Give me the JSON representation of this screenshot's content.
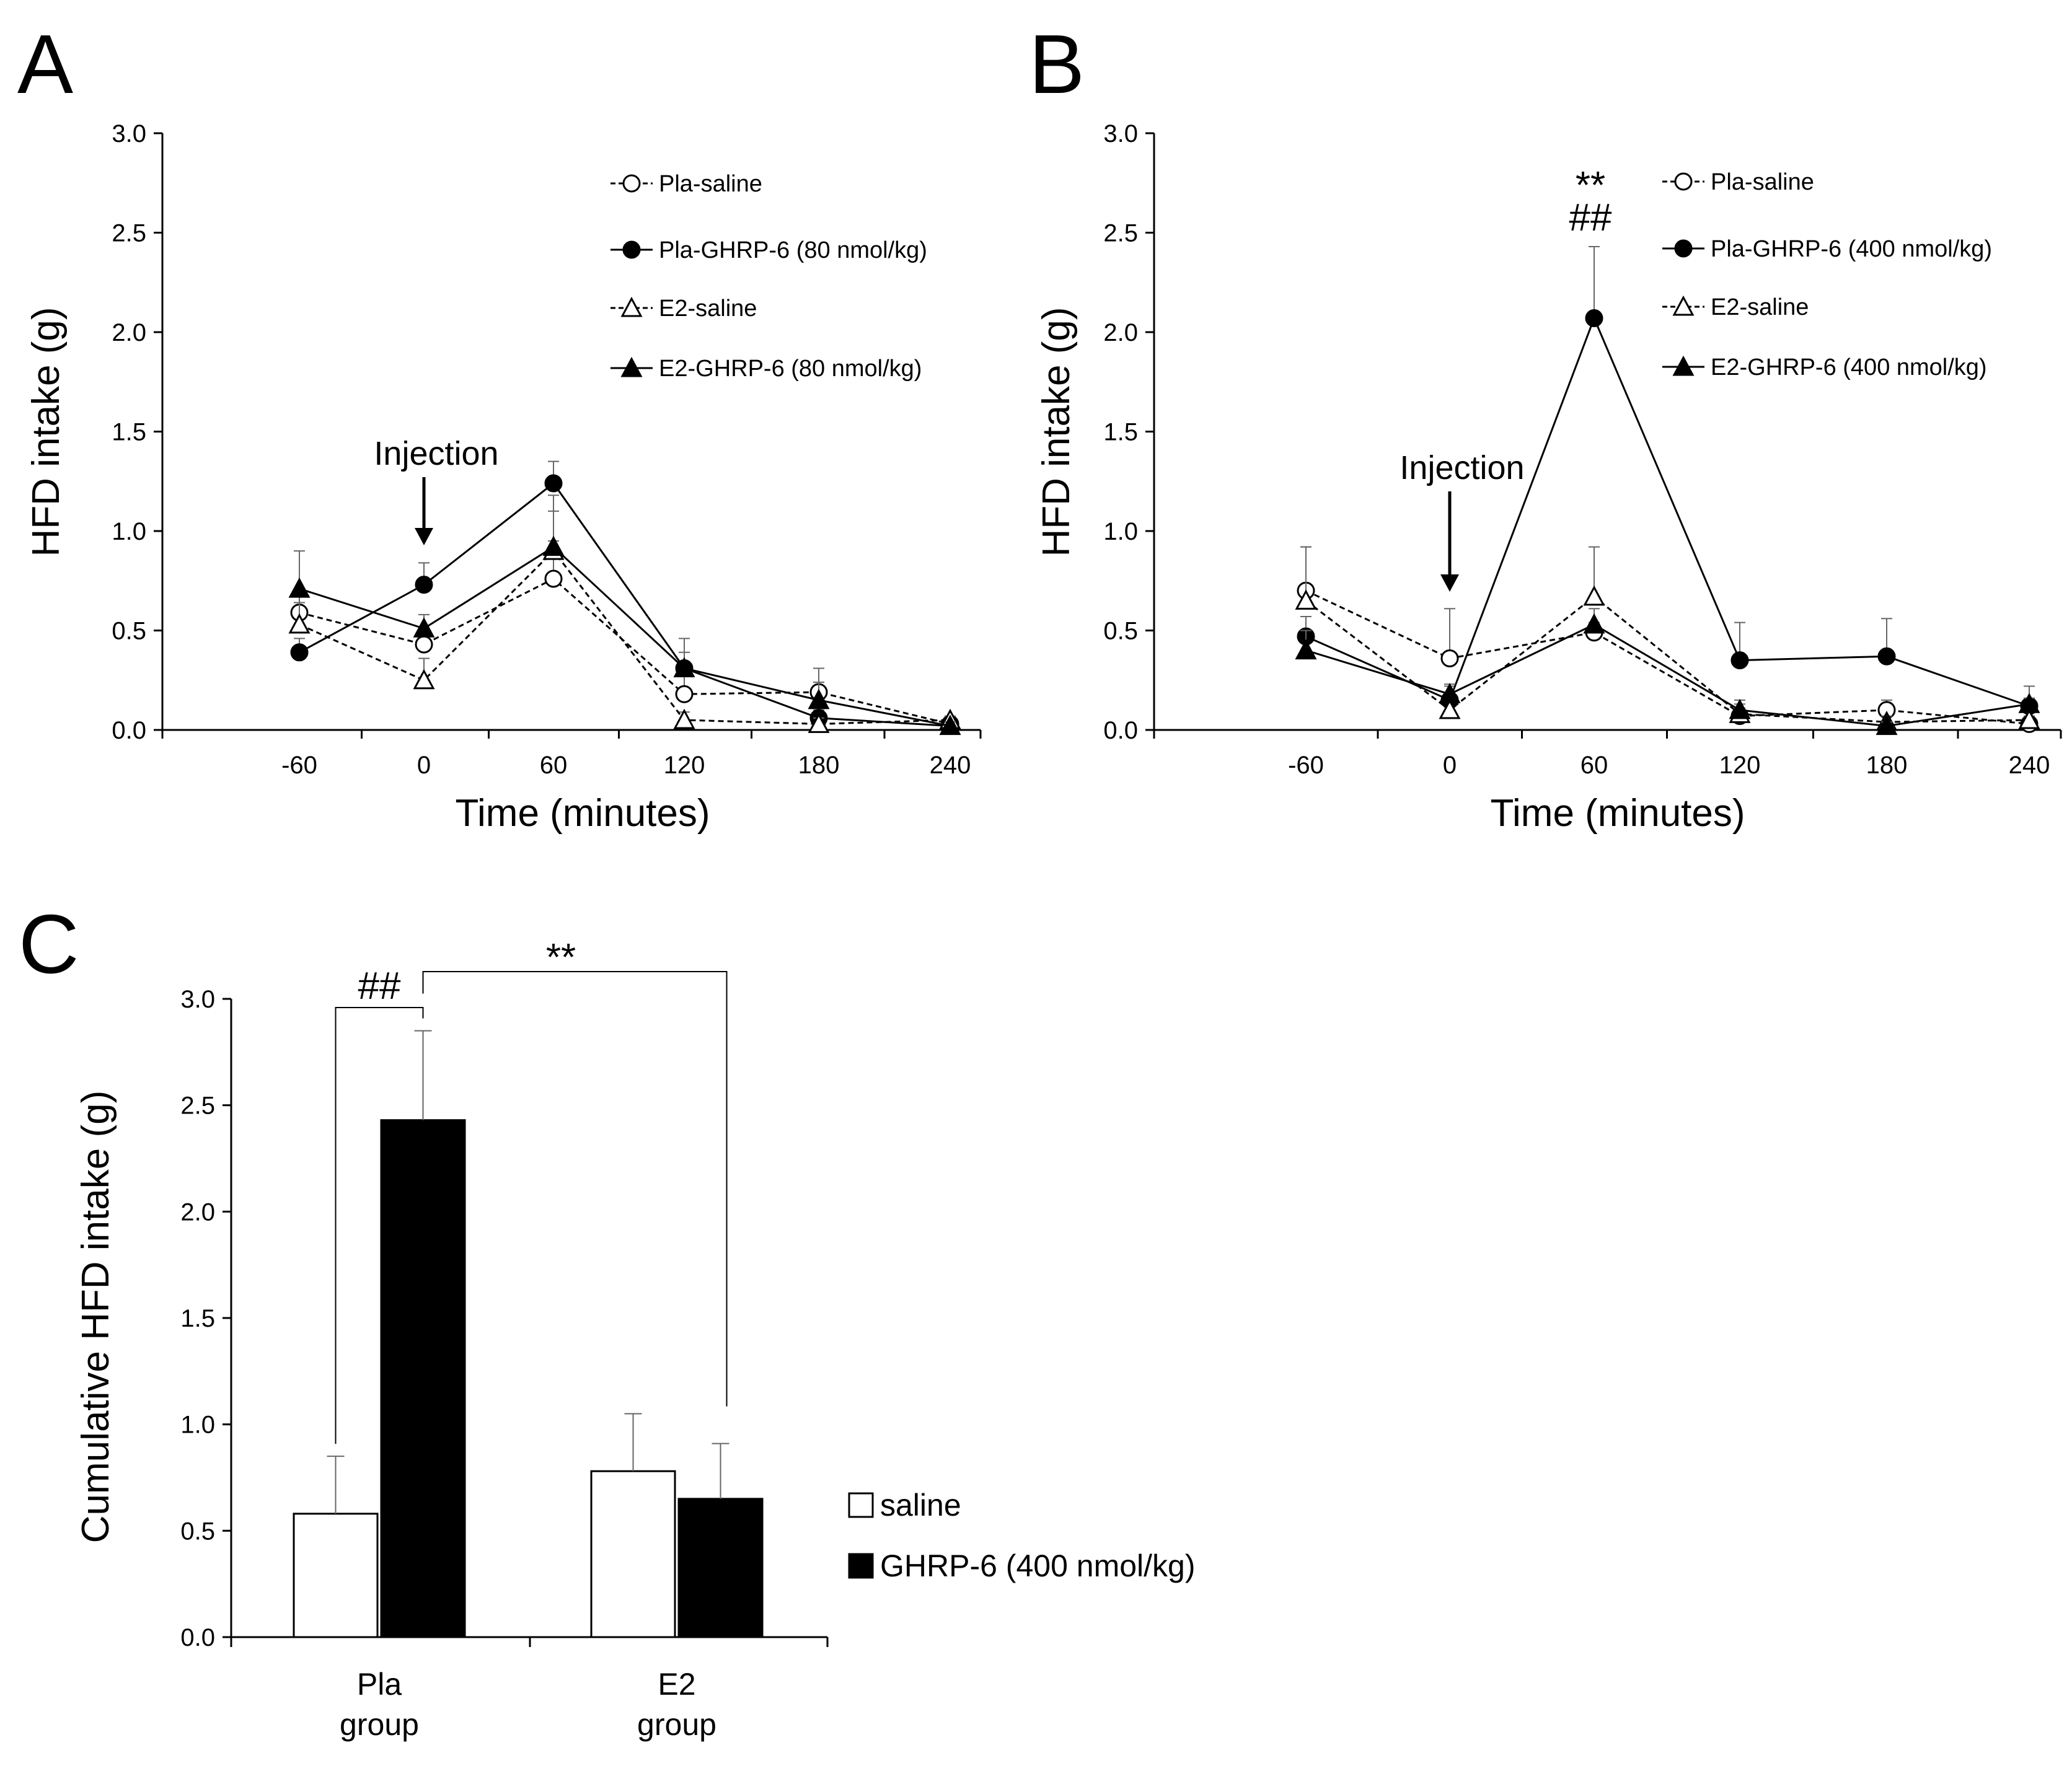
{
  "chart_data": [
    {
      "panel": "A",
      "type": "line",
      "xlabel": "Time (minutes)",
      "ylabel": "HFD intake (g)",
      "x": [
        -60,
        0,
        60,
        120,
        180,
        240
      ],
      "xticks": [
        "-60",
        "0",
        "60",
        "120",
        "180",
        "240"
      ],
      "yticks": [
        "3.0",
        "2.5",
        "2.0",
        "1.5",
        "1.0",
        "0.5",
        "0.0"
      ],
      "ylim": [
        0,
        3
      ],
      "annotation": "Injection",
      "annotation_x": 0,
      "series": [
        {
          "name": "Pla-saline",
          "marker": "open-circle",
          "line": "dashed",
          "values": [
            0.59,
            0.43,
            0.76,
            0.18,
            0.19,
            0.03
          ],
          "errors": [
            0.12,
            0.08,
            0.19,
            0.14,
            0.12,
            0.02
          ]
        },
        {
          "name": "Pla-GHRP-6 (80 nmol/kg)",
          "marker": "filled-circle",
          "line": "solid",
          "values": [
            0.39,
            0.73,
            1.24,
            0.31,
            0.06,
            0.02
          ],
          "errors": [
            0.07,
            0.11,
            0.11,
            0.08,
            0.04,
            0.02
          ]
        },
        {
          "name": "E2-saline",
          "marker": "open-triangle",
          "line": "dashed",
          "values": [
            0.53,
            0.25,
            0.9,
            0.05,
            0.03,
            0.05
          ],
          "errors": [
            0.11,
            0.11,
            0.2,
            0.04,
            0.03,
            0.02
          ]
        },
        {
          "name": "E2-GHRP-6 (80 nmol/kg)",
          "marker": "filled-triangle",
          "line": "solid",
          "values": [
            0.71,
            0.51,
            0.92,
            0.31,
            0.15,
            0.02
          ],
          "errors": [
            0.19,
            0.07,
            0.26,
            0.15,
            0.09,
            0.02
          ]
        }
      ]
    },
    {
      "panel": "B",
      "type": "line",
      "xlabel": "Time (minutes)",
      "ylabel": "HFD intake (g)",
      "x": [
        -60,
        0,
        60,
        120,
        180,
        240
      ],
      "xticks": [
        "-60",
        "0",
        "60",
        "120",
        "180",
        "240"
      ],
      "yticks": [
        "3.0",
        "2.5",
        "2.0",
        "1.5",
        "1.0",
        "0.5",
        "0.0"
      ],
      "ylim": [
        0,
        3
      ],
      "annotation": "Injection",
      "annotation_x": 0,
      "significance": [
        "**",
        "##"
      ],
      "significance_x": 60,
      "series": [
        {
          "name": "Pla-saline",
          "marker": "open-circle",
          "line": "dashed",
          "values": [
            0.7,
            0.36,
            0.49,
            0.07,
            0.1,
            0.03
          ],
          "errors": [
            0.22,
            0.25,
            0.05,
            0.04,
            0.05,
            0.02
          ]
        },
        {
          "name": "Pla-GHRP-6 (400 nmol/kg)",
          "marker": "filled-circle",
          "line": "solid",
          "values": [
            0.47,
            0.15,
            2.07,
            0.35,
            0.37,
            0.12
          ],
          "errors": [
            0.1,
            0.07,
            0.36,
            0.19,
            0.19,
            0.1
          ]
        },
        {
          "name": "E2-saline",
          "marker": "open-triangle",
          "line": "dashed",
          "values": [
            0.65,
            0.1,
            0.67,
            0.08,
            0.04,
            0.05
          ],
          "errors": [
            0.27,
            0.06,
            0.25,
            0.05,
            0.03,
            0.02
          ]
        },
        {
          "name": "E2-GHRP-6 (400 nmol/kg)",
          "marker": "filled-triangle",
          "line": "solid",
          "values": [
            0.4,
            0.18,
            0.53,
            0.1,
            0.02,
            0.13
          ],
          "errors": [
            0.1,
            0.05,
            0.08,
            0.05,
            0.02,
            0.03
          ]
        }
      ]
    },
    {
      "panel": "C",
      "type": "bar",
      "ylabel": "Cumulative  HFD intake (g)",
      "categories": [
        [
          "Pla",
          "group"
        ],
        [
          "E2",
          "group"
        ]
      ],
      "yticks": [
        "3.0",
        "2.5",
        "2.0",
        "1.5",
        "1.0",
        "0.5",
        "0.0"
      ],
      "ylim": [
        0,
        3
      ],
      "series": [
        {
          "name": "saline",
          "color": "#ffffff",
          "values": [
            0.58,
            0.78
          ],
          "errors": [
            0.27,
            0.27
          ]
        },
        {
          "name": "GHRP-6 (400 nmol/kg)",
          "color": "#000000",
          "values": [
            2.43,
            0.65
          ],
          "errors": [
            0.42,
            0.26
          ]
        }
      ],
      "brackets": [
        {
          "label": "##",
          "between": "Pla saline vs Pla GHRP-6"
        },
        {
          "label": "**",
          "between": "Pla GHRP-6 vs E2 GHRP-6"
        }
      ]
    }
  ]
}
